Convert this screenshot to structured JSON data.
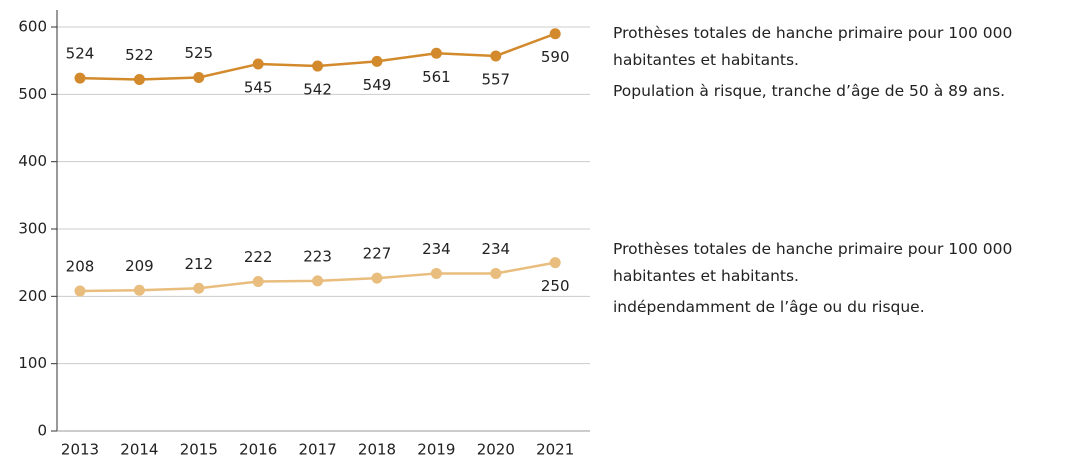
{
  "chart_data": {
    "type": "line",
    "categories": [
      "2013",
      "2014",
      "2015",
      "2016",
      "2017",
      "2018",
      "2019",
      "2020",
      "2021"
    ],
    "series": [
      {
        "name": "Prothèses totales de hanche primaire  pour 100 000 habitantes et habitants.",
        "note": "Population à risque, tranche d’âge de 50 à 89 ans.",
        "color": "#d38a2c",
        "values": [
          524,
          522,
          525,
          545,
          542,
          549,
          561,
          557,
          590
        ]
      },
      {
        "name": "Prothèses totales de hanche primaire  pour 100 000 habitantes et habitants.",
        "note": "indépendamment de l’âge ou du risque.",
        "color": "#e9bd7d",
        "values": [
          208,
          209,
          212,
          222,
          223,
          227,
          234,
          234,
          250
        ]
      }
    ],
    "ylim": [
      0,
      600
    ],
    "yticks": [
      0,
      100,
      200,
      300,
      400,
      500,
      600
    ],
    "grid": true
  }
}
